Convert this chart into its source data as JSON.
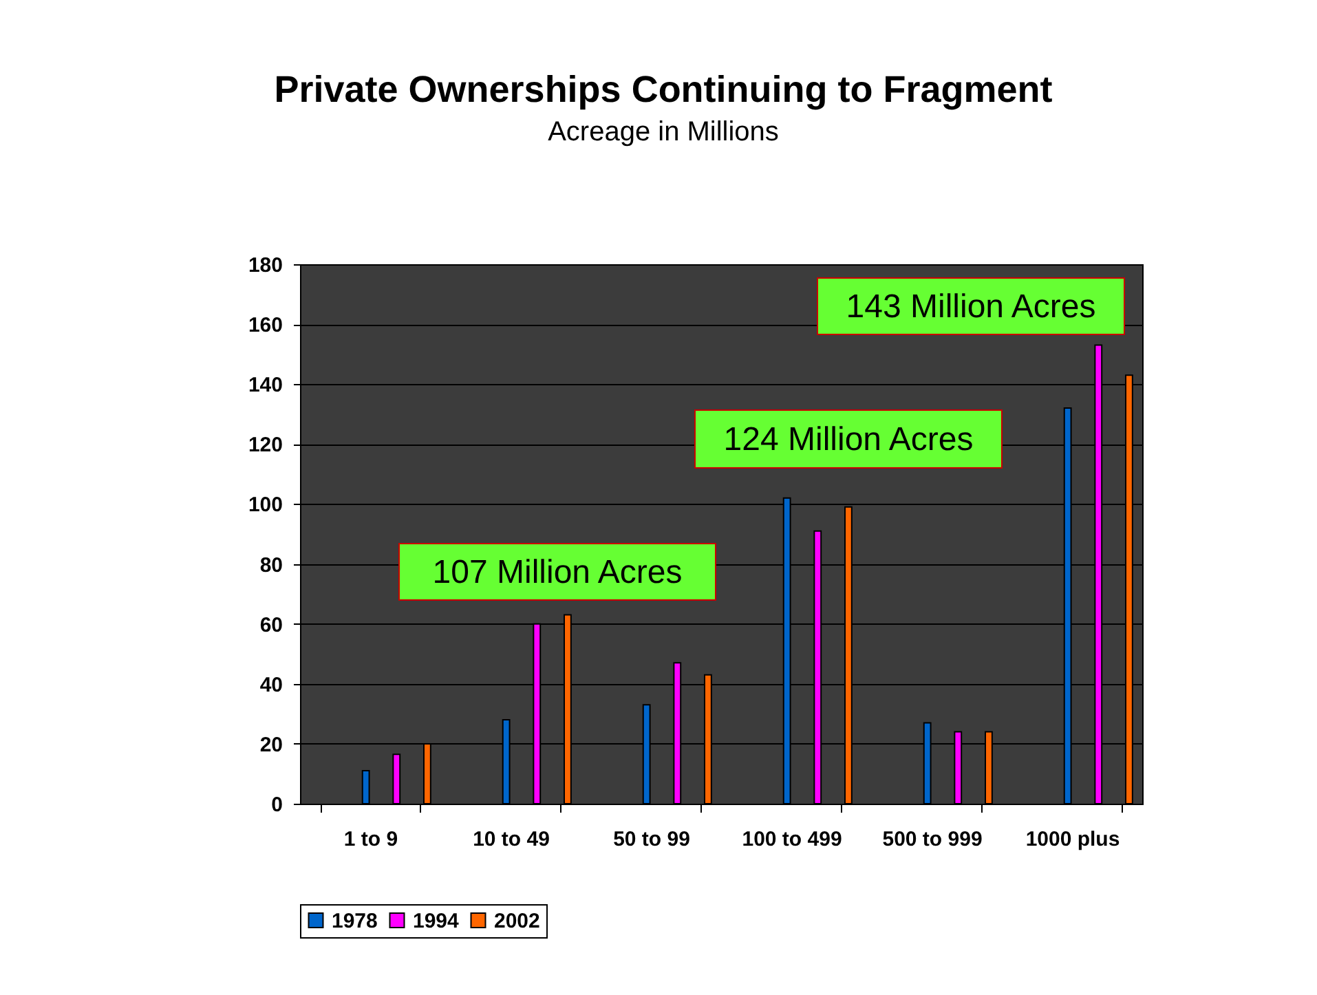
{
  "chart_data": {
    "type": "bar",
    "title": "Private Ownerships Continuing to Fragment",
    "subtitle": "Acreage in Millions",
    "categories": [
      "1 to 9",
      "10 to 49",
      "50 to 99",
      "100 to 499",
      "500 to 999",
      "1000 plus"
    ],
    "series": [
      {
        "name": "1978",
        "color": "#0066cc",
        "values": [
          11,
          28,
          33,
          102,
          27,
          132
        ]
      },
      {
        "name": "1994",
        "color": "#ff00ff",
        "values": [
          16.5,
          60,
          47,
          91,
          24,
          153
        ]
      },
      {
        "name": "2002",
        "color": "#ff6600",
        "values": [
          20,
          63,
          43,
          99,
          24,
          143
        ]
      }
    ],
    "ylim": [
      0,
      180
    ],
    "yticks": [
      0,
      20,
      40,
      60,
      80,
      100,
      120,
      140,
      160,
      180
    ],
    "grid": "y",
    "legend": "bottom",
    "annotations": [
      "107 Million Acres",
      "124 Million Acres",
      "143 Million Acres"
    ]
  }
}
